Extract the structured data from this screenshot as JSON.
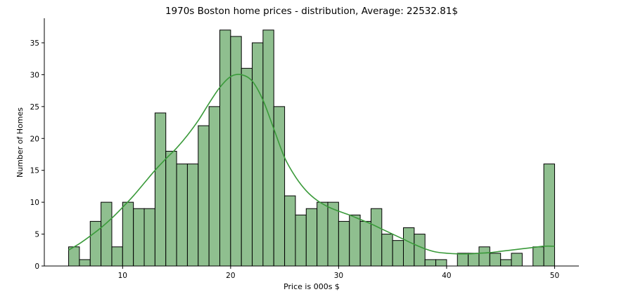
{
  "chart_data": {
    "type": "bar",
    "title": "1970s Boston home prices - distribution, Average: 22532.81$",
    "xlabel": "Price is 000s $",
    "ylabel": "Number of Homes",
    "xlim": [
      2.75,
      52.25
    ],
    "ylim": [
      0,
      38.85
    ],
    "xticks": [
      10,
      20,
      30,
      40,
      50
    ],
    "yticks": [
      0,
      5,
      10,
      15,
      20,
      25,
      30,
      35
    ],
    "bin_start": 5.0,
    "bin_width": 1.0,
    "counts": [
      3,
      1,
      7,
      10,
      3,
      10,
      9,
      9,
      24,
      18,
      16,
      16,
      22,
      25,
      37,
      36,
      31,
      35,
      37,
      25,
      11,
      8,
      9,
      10,
      10,
      7,
      8,
      7,
      9,
      5,
      4,
      6,
      5,
      1,
      1,
      0,
      2,
      2,
      3,
      2,
      1,
      2,
      0,
      3,
      16
    ],
    "kde": {
      "x": [
        5,
        6,
        7,
        8,
        9,
        10,
        11,
        12,
        13,
        14,
        15,
        16,
        17,
        18,
        19,
        20,
        21,
        22,
        23,
        24,
        25,
        26,
        27,
        28,
        29,
        30,
        31,
        32,
        33,
        34,
        35,
        36,
        37,
        38,
        39,
        40,
        41,
        42,
        43,
        44,
        45,
        46,
        47,
        48,
        49,
        50
      ],
      "y": [
        2.5,
        3.5,
        4.7,
        6.0,
        7.5,
        9.2,
        11.0,
        13.0,
        15.0,
        16.8,
        18.5,
        20.5,
        22.8,
        25.5,
        28.0,
        29.7,
        30.0,
        29.0,
        26.0,
        21.5,
        17.0,
        14.0,
        11.8,
        10.3,
        9.3,
        8.6,
        8.0,
        7.3,
        6.6,
        5.8,
        5.0,
        4.2,
        3.4,
        2.7,
        2.2,
        2.0,
        1.9,
        1.9,
        2.0,
        2.1,
        2.3,
        2.5,
        2.7,
        2.9,
        3.1,
        3.1
      ]
    },
    "grid": false,
    "colors": {
      "bar_fill": "#8fbf8f",
      "bar_edge": "#000000",
      "kde_line": "#3a9a3a",
      "axis": "#000000"
    }
  }
}
